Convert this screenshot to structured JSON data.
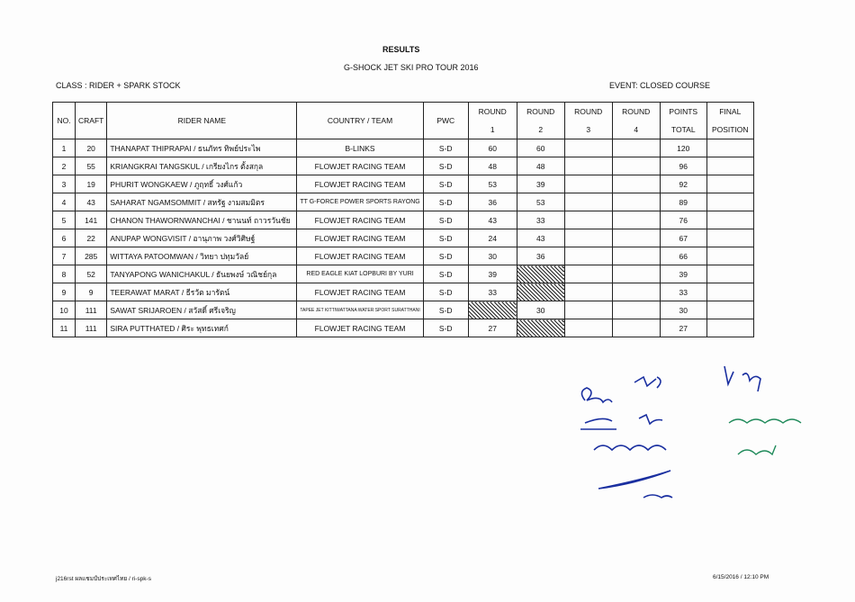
{
  "title": "RESULTS",
  "subtitle": "G-SHOCK JET SKI PRO TOUR 2016",
  "class": "CLASS : RIDER + SPARK STOCK",
  "event": "EVENT: CLOSED COURSE",
  "headers": {
    "no": "NO.",
    "craft": "CRAFT",
    "rider": "RIDER NAME",
    "team": "COUNTRY / TEAM",
    "pwc": "PWC",
    "round": "ROUND",
    "r1": "1",
    "r2": "2",
    "r3": "3",
    "r4": "4",
    "points": "POINTS",
    "total": "TOTAL",
    "final": "FINAL",
    "position": "POSITION"
  },
  "rows": [
    {
      "no": "1",
      "craft": "20",
      "rider": "THANAPAT THIPRAPAI / ธนภัทร ทิพย์ประไพ",
      "team": "B-LINKS",
      "pwc": "S-D",
      "r1": "60",
      "r2": "60",
      "r3": "",
      "r4": "",
      "total": "120",
      "hatch": []
    },
    {
      "no": "2",
      "craft": "55",
      "rider": "KRIANGKRAI TANGSKUL / เกรียงไกร ตั้งสกุล",
      "team": "FLOWJET RACING TEAM",
      "pwc": "S-D",
      "r1": "48",
      "r2": "48",
      "r3": "",
      "r4": "",
      "total": "96",
      "hatch": []
    },
    {
      "no": "3",
      "craft": "19",
      "rider": "PHURIT WONGKAEW / ภูฤทธิ์ วงศ์แก้ว",
      "team": "FLOWJET RACING TEAM",
      "pwc": "S-D",
      "r1": "53",
      "r2": "39",
      "r3": "",
      "r4": "",
      "total": "92",
      "hatch": []
    },
    {
      "no": "4",
      "craft": "43",
      "rider": "SAHARAT NGAMSOMMIT / สหรัฐ งามสมมิตร",
      "team": "TT G-FORCE POWER SPORTS RAYONG",
      "pwc": "S-D",
      "r1": "36",
      "r2": "53",
      "r3": "",
      "r4": "",
      "total": "89",
      "hatch": []
    },
    {
      "no": "5",
      "craft": "141",
      "rider": "CHANON THAWORNWANCHAI / ชานนท์ ถาวรวันชัย",
      "team": "FLOWJET RACING TEAM",
      "pwc": "S-D",
      "r1": "43",
      "r2": "33",
      "r3": "",
      "r4": "",
      "total": "76",
      "hatch": []
    },
    {
      "no": "6",
      "craft": "22",
      "rider": "ANUPAP WONGVISIT / อานุภาพ วงศ์วิศิษฐ์",
      "team": "FLOWJET RACING TEAM",
      "pwc": "S-D",
      "r1": "24",
      "r2": "43",
      "r3": "",
      "r4": "",
      "total": "67",
      "hatch": []
    },
    {
      "no": "7",
      "craft": "285",
      "rider": "WITTAYA PATOOMWAN / วิทยา ปทุมวัลย์",
      "team": "FLOWJET RACING TEAM",
      "pwc": "S-D",
      "r1": "30",
      "r2": "36",
      "r3": "",
      "r4": "",
      "total": "66",
      "hatch": []
    },
    {
      "no": "8",
      "craft": "52",
      "rider": "TANYAPONG WANICHAKUL / ธันยพงษ์ วณิชย์กุล",
      "team": "RED EAGLE KIAT LOPBURI BY YURI",
      "pwc": "S-D",
      "r1": "39",
      "r2": "",
      "r3": "",
      "r4": "",
      "total": "39",
      "hatch": [
        "r2"
      ]
    },
    {
      "no": "9",
      "craft": "9",
      "rider": "TEERAWAT MARAT / ธีรวัต มารัตน์",
      "team": "FLOWJET RACING TEAM",
      "pwc": "S-D",
      "r1": "33",
      "r2": "",
      "r3": "",
      "r4": "",
      "total": "33",
      "hatch": [
        "r2"
      ]
    },
    {
      "no": "10",
      "craft": "111",
      "rider": "SAWAT SRIJAROEN / สวัสดิ์ ศรีเจริญ",
      "team": "TAPEE JET KITTIWATTANA WATER SPORT SURATTHANI",
      "pwc": "S-D",
      "r1": "",
      "r2": "30",
      "r3": "",
      "r4": "",
      "total": "30",
      "hatch": [
        "r1"
      ]
    },
    {
      "no": "11",
      "craft": "111",
      "rider": "SIRA PUTTHATED / ศิระ พุทธเทศก์",
      "team": "FLOWJET RACING TEAM",
      "pwc": "S-D",
      "r1": "27",
      "r2": "",
      "r3": "",
      "r4": "",
      "total": "27",
      "hatch": [
        "r2"
      ]
    }
  ],
  "footer_left": "j216rst ผลแชมป์ประเทศไทย / ri-spk-s",
  "footer_right": "6/15/2016 / 12:10 PM",
  "colors": {
    "ink": "#1a2fa0",
    "ink_green": "#1f8a5a"
  }
}
